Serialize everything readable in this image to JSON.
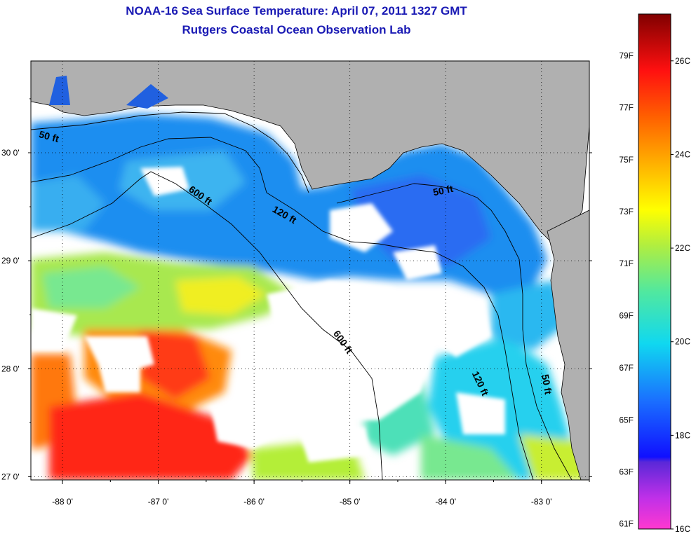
{
  "title": {
    "line1": "NOAA-16 Sea Surface Temperature:  April 07, 2011 1327 GMT",
    "line2": "Rutgers Coastal Ocean Observation Lab"
  },
  "map": {
    "lon_range": [
      -88.33,
      -82.5
    ],
    "lat_range": [
      26.97,
      30.85
    ],
    "x_ticks": [
      {
        "value": -88,
        "label": "-88 0'"
      },
      {
        "value": -87,
        "label": "-87 0'"
      },
      {
        "value": -86,
        "label": "-86 0'"
      },
      {
        "value": -85,
        "label": "-85 0'"
      },
      {
        "value": -84,
        "label": "-84 0'"
      },
      {
        "value": -83,
        "label": "-83 0'"
      }
    ],
    "y_ticks": [
      {
        "value": 30,
        "label": "30 0'"
      },
      {
        "value": 29,
        "label": "29 0'"
      },
      {
        "value": 28,
        "label": "28 0'"
      },
      {
        "value": 27,
        "label": "27 0'"
      }
    ],
    "grid": "dotted",
    "land_color": "#b0b0b0",
    "cloud_color": "#ffffff",
    "contour_labels": [
      {
        "text": "50 ft",
        "lon": -88.15,
        "lat": 30.12,
        "rot": 15
      },
      {
        "text": "600 ft",
        "lon": -86.58,
        "lat": 29.58,
        "rot": 35
      },
      {
        "text": "120 ft",
        "lon": -85.7,
        "lat": 29.4,
        "rot": 30
      },
      {
        "text": "50 ft",
        "lon": -84.02,
        "lat": 29.62,
        "rot": -12
      },
      {
        "text": "600 ft",
        "lon": -85.1,
        "lat": 28.23,
        "rot": 55
      },
      {
        "text": "120 ft",
        "lon": -83.67,
        "lat": 27.85,
        "rot": 65
      },
      {
        "text": "50 ft",
        "lon": -82.98,
        "lat": 27.85,
        "rot": 80
      }
    ]
  },
  "colorbar": {
    "min_c": 16,
    "max_c": 27,
    "f_ticks": [
      {
        "label": "61F",
        "c": 16.11
      },
      {
        "label": "63F",
        "c": 17.22
      },
      {
        "label": "65F",
        "c": 18.33
      },
      {
        "label": "67F",
        "c": 19.44
      },
      {
        "label": "69F",
        "c": 20.56
      },
      {
        "label": "71F",
        "c": 21.67
      },
      {
        "label": "73F",
        "c": 22.78
      },
      {
        "label": "75F",
        "c": 23.89
      },
      {
        "label": "77F",
        "c": 25.0
      },
      {
        "label": "79F",
        "c": 26.11
      }
    ],
    "c_ticks": [
      {
        "label": "16C",
        "c": 16
      },
      {
        "label": "18C",
        "c": 18
      },
      {
        "label": "20C",
        "c": 20
      },
      {
        "label": "22C",
        "c": 22
      },
      {
        "label": "24C",
        "c": 24
      },
      {
        "label": "26C",
        "c": 26
      }
    ]
  }
}
